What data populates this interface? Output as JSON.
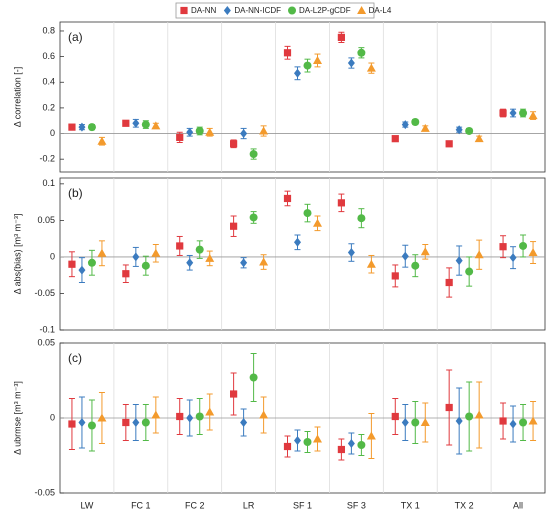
{
  "chart_data": [
    {
      "type": "errorbar",
      "annotation": "(a)",
      "ylabel": "Δ correlation [-]",
      "ylim": [
        -0.3,
        0.87
      ],
      "yticks": [
        -0.2,
        0,
        0.2,
        0.4,
        0.6,
        0.8
      ],
      "series": [
        {
          "name": "DA-NN",
          "color": "#e0393e",
          "marker": "square",
          "values": [
            0.05,
            0.08,
            -0.03,
            -0.08,
            0.63,
            0.75,
            -0.04,
            -0.08,
            0.16
          ],
          "errors": [
            0.02,
            0.02,
            0.04,
            0.03,
            0.05,
            0.04,
            0.02,
            0.02,
            0.03
          ]
        },
        {
          "name": "DA-NN-ICDF",
          "color": "#3b7bbf",
          "marker": "diamond",
          "values": [
            0.05,
            0.08,
            0.01,
            0.0,
            0.47,
            0.55,
            0.07,
            0.03,
            0.16
          ],
          "errors": [
            0.02,
            0.03,
            0.03,
            0.04,
            0.05,
            0.04,
            0.02,
            0.02,
            0.03
          ]
        },
        {
          "name": "DA-L2P-gCDF",
          "color": "#52b947",
          "marker": "circle",
          "values": [
            0.05,
            0.07,
            0.02,
            -0.16,
            0.53,
            0.63,
            0.09,
            0.02,
            0.16
          ],
          "errors": [
            0.02,
            0.03,
            0.03,
            0.04,
            0.05,
            0.04,
            0.02,
            0.02,
            0.03
          ]
        },
        {
          "name": "DA-L4",
          "color": "#f39a2c",
          "marker": "triangle",
          "values": [
            -0.06,
            0.06,
            0.01,
            0.02,
            0.57,
            0.51,
            0.04,
            -0.04,
            0.14
          ],
          "errors": [
            0.03,
            0.02,
            0.03,
            0.04,
            0.05,
            0.04,
            0.02,
            0.02,
            0.03
          ]
        }
      ]
    },
    {
      "type": "errorbar",
      "annotation": "(b)",
      "ylabel": "Δ abs(bias) [m³ m⁻³]",
      "ylim": [
        -0.1,
        0.108
      ],
      "yticks": [
        -0.1,
        -0.05,
        0,
        0.05,
        0.1
      ],
      "series": [
        {
          "color": "#e0393e",
          "marker": "square",
          "values": [
            -0.01,
            -0.023,
            0.015,
            0.042,
            0.08,
            0.074,
            -0.026,
            -0.035,
            0.014
          ],
          "errors": [
            0.017,
            0.012,
            0.013,
            0.014,
            0.01,
            0.012,
            0.015,
            0.02,
            0.015
          ]
        },
        {
          "color": "#3b7bbf",
          "marker": "diamond",
          "values": [
            -0.018,
            0.0,
            -0.008,
            -0.008,
            0.02,
            0.006,
            0.001,
            -0.005,
            -0.001
          ],
          "errors": [
            0.017,
            0.013,
            0.01,
            0.007,
            0.01,
            0.012,
            0.015,
            0.02,
            0.015
          ]
        },
        {
          "color": "#52b947",
          "marker": "circle",
          "values": [
            -0.008,
            -0.012,
            0.01,
            0.054,
            0.06,
            0.053,
            -0.012,
            -0.02,
            0.015
          ],
          "errors": [
            0.017,
            0.013,
            0.012,
            0.008,
            0.012,
            0.013,
            0.015,
            0.02,
            0.015
          ]
        },
        {
          "color": "#f39a2c",
          "marker": "triangle",
          "values": [
            0.005,
            0.005,
            -0.002,
            -0.007,
            0.046,
            -0.01,
            0.007,
            0.003,
            0.006
          ],
          "errors": [
            0.017,
            0.012,
            0.01,
            0.01,
            0.01,
            0.012,
            0.01,
            0.02,
            0.015
          ]
        }
      ]
    },
    {
      "type": "errorbar",
      "annotation": "(c)",
      "ylabel": "Δ ubrmse [m³ m⁻³]",
      "ylim": [
        -0.05,
        0.05
      ],
      "yticks": [
        -0.05,
        0,
        0.05
      ],
      "categories": [
        "LW",
        "FC 1",
        "FC 2",
        "LR",
        "SF 1",
        "SF 3",
        "TX 1",
        "TX 2",
        "All"
      ],
      "series": [
        {
          "color": "#e0393e",
          "marker": "square",
          "values": [
            -0.004,
            -0.003,
            0.001,
            0.016,
            -0.019,
            -0.021,
            0.001,
            0.007,
            -0.002
          ],
          "errors": [
            0.017,
            0.012,
            0.012,
            0.014,
            0.007,
            0.007,
            0.012,
            0.025,
            0.012
          ]
        },
        {
          "color": "#3b7bbf",
          "marker": "diamond",
          "values": [
            -0.003,
            -0.003,
            0.0,
            -0.003,
            -0.015,
            -0.017,
            -0.003,
            -0.002,
            -0.004
          ],
          "errors": [
            0.017,
            0.012,
            0.012,
            0.009,
            0.007,
            0.007,
            0.012,
            0.022,
            0.012
          ]
        },
        {
          "color": "#52b947",
          "marker": "circle",
          "values": [
            -0.005,
            -0.003,
            0.001,
            0.027,
            -0.016,
            -0.018,
            -0.003,
            0.001,
            -0.003
          ],
          "errors": [
            0.017,
            0.012,
            0.012,
            0.016,
            0.007,
            0.007,
            0.014,
            0.023,
            0.012
          ]
        },
        {
          "color": "#f39a2c",
          "marker": "triangle",
          "values": [
            0.0,
            0.002,
            0.004,
            0.002,
            -0.014,
            -0.012,
            -0.003,
            0.002,
            -0.002
          ],
          "errors": [
            0.017,
            0.012,
            0.012,
            0.012,
            0.008,
            0.015,
            0.013,
            0.022,
            0.013
          ]
        }
      ]
    }
  ]
}
